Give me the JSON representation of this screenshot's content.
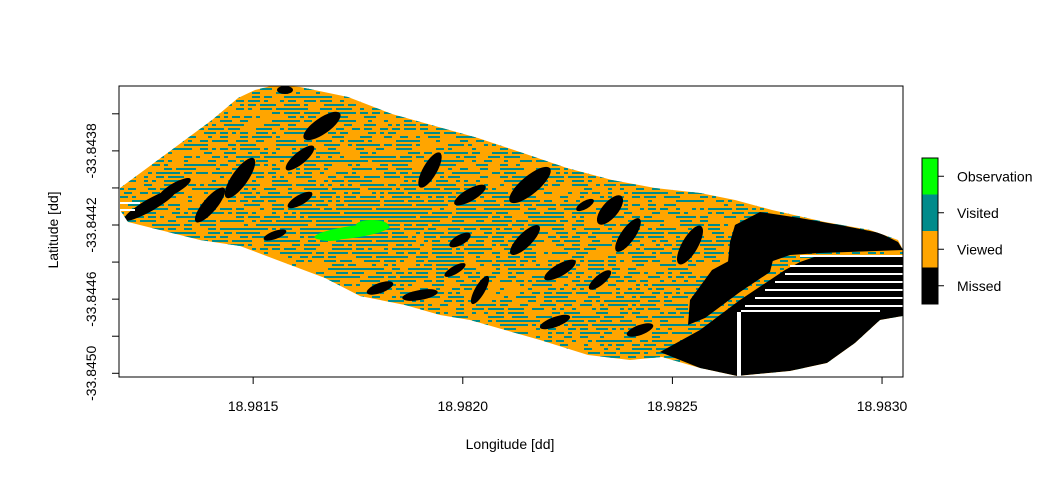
{
  "chart_data": {
    "type": "heatmap",
    "title": "",
    "xlabel": "Longitude [dd]",
    "ylabel": "Latitude [dd]",
    "xlim": [
      18.98118,
      18.98305
    ],
    "ylim": [
      -33.84502,
      -33.84345
    ],
    "x_ticks": [
      "18.9815",
      "18.9820",
      "18.9825",
      "18.9830"
    ],
    "y_ticks": [
      "-33.8438",
      "-33.8442",
      "-33.8446",
      "-33.8450"
    ],
    "categories": [
      "Observation",
      "Visited",
      "Viewed",
      "Missed"
    ],
    "colors": {
      "Observation": "#00ff00",
      "Visited": "#008b8b",
      "Viewed": "#ffa500",
      "Missed": "#000000"
    },
    "legend_position": "right",
    "grid": false
  }
}
